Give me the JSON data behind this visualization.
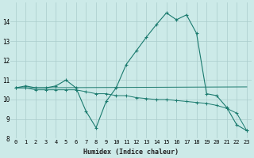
{
  "xlabel": "Humidex (Indice chaleur)",
  "bg_color": "#cceae8",
  "grid_color": "#aacccc",
  "line_color": "#1a7a6e",
  "xlim": [
    -0.5,
    23.5
  ],
  "ylim": [
    8,
    15
  ],
  "xticks": [
    0,
    1,
    2,
    3,
    4,
    5,
    6,
    7,
    8,
    9,
    10,
    11,
    12,
    13,
    14,
    15,
    16,
    17,
    18,
    19,
    20,
    21,
    22,
    23
  ],
  "yticks": [
    8,
    9,
    10,
    11,
    12,
    13,
    14
  ],
  "series": [
    {
      "x": [
        0,
        1,
        2,
        3,
        4,
        5,
        6,
        7,
        8,
        9,
        10,
        11,
        12,
        13,
        14,
        15,
        16,
        17,
        18,
        19,
        20,
        21,
        22,
        23
      ],
      "y": [
        10.6,
        10.7,
        10.6,
        10.6,
        10.7,
        11.0,
        10.6,
        9.4,
        8.55,
        9.9,
        10.6,
        11.8,
        12.5,
        13.2,
        13.85,
        14.45,
        14.1,
        14.35,
        13.4,
        10.3,
        10.2,
        9.6,
        8.7,
        8.4
      ]
    },
    {
      "x": [
        0,
        23
      ],
      "y": [
        10.6,
        10.65
      ]
    },
    {
      "x": [
        0,
        1,
        2,
        3,
        4,
        5,
        6,
        7,
        8,
        9,
        10,
        11,
        12,
        13,
        14,
        15,
        16,
        17,
        18,
        19,
        20,
        21,
        22,
        23
      ],
      "y": [
        10.6,
        10.6,
        10.5,
        10.5,
        10.5,
        10.5,
        10.5,
        10.4,
        10.3,
        10.3,
        10.2,
        10.2,
        10.1,
        10.05,
        10.0,
        10.0,
        9.95,
        9.9,
        9.85,
        9.8,
        9.7,
        9.55,
        9.3,
        8.4
      ]
    }
  ]
}
